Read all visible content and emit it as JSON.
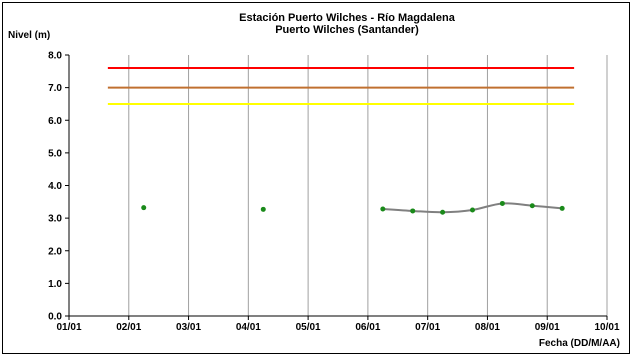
{
  "chart_data": {
    "type": "line",
    "title": "Estación Puerto Wilches - Río Magdalena",
    "subtitle": "Puerto Wilches (Santander)",
    "ylabel": "Nivel (m)",
    "xlabel": "Fecha (DD/M/AA)",
    "ylim": [
      0.0,
      8.0
    ],
    "xlim": [
      0,
      9
    ],
    "yticks": [
      "0.0",
      "1.0",
      "2.0",
      "3.0",
      "4.0",
      "5.0",
      "6.0",
      "7.0",
      "8.0"
    ],
    "xticks": [
      "01/01",
      "02/01",
      "03/01",
      "04/01",
      "05/01",
      "06/01",
      "07/01",
      "08/01",
      "09/01",
      "10/01"
    ],
    "grid": {
      "vertical": true,
      "horizontal": false
    },
    "thresholds": [
      {
        "value": 7.6,
        "color": "#ff0000",
        "x_from": 0.65,
        "x_to": 8.45
      },
      {
        "value": 7.0,
        "color": "#c07030",
        "x_from": 0.65,
        "x_to": 8.45
      },
      {
        "value": 6.5,
        "color": "#ffff00",
        "x_from": 0.65,
        "x_to": 8.45
      }
    ],
    "points": {
      "x": [
        1.25,
        3.25,
        5.25,
        5.75,
        6.25,
        6.75,
        7.25,
        7.75,
        8.25
      ],
      "y": [
        3.32,
        3.27,
        3.28,
        3.22,
        3.18,
        3.25,
        3.45,
        3.38,
        3.3
      ],
      "color": "#1a8a1a"
    },
    "curve": {
      "x": [
        5.25,
        5.75,
        6.25,
        6.75,
        7.25,
        7.75,
        8.25
      ],
      "y": [
        3.28,
        3.22,
        3.18,
        3.25,
        3.45,
        3.38,
        3.3
      ],
      "color": "#808080"
    }
  }
}
